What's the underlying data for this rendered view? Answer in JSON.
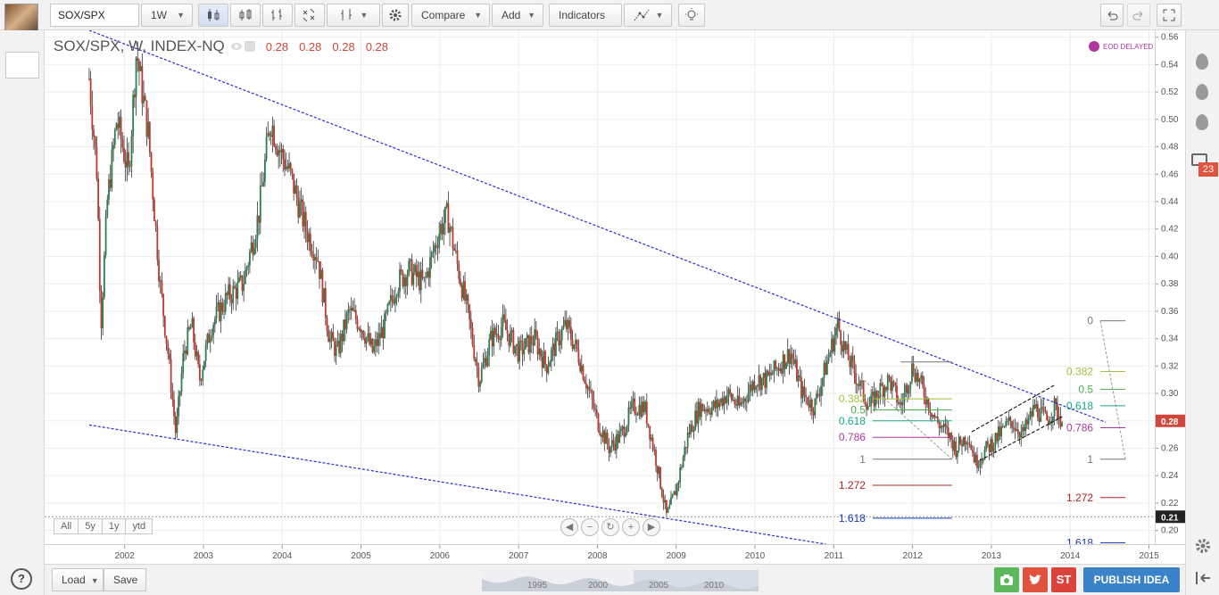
{
  "toolbar": {
    "symbol": "SOX/SPX",
    "interval": "1W",
    "compare": "Compare",
    "add": "Add",
    "indicators": "Indicators"
  },
  "legend": {
    "title": "SOX/SPX, W, INDEX-NQ",
    "open": "0.28",
    "high": "0.28",
    "low": "0.28",
    "close": "0.28"
  },
  "eod_label": "EOD DELAYED",
  "range_buttons": [
    "All",
    "5y",
    "1y",
    "ytd"
  ],
  "bottom": {
    "load": "Load",
    "save": "Save",
    "publish": "PUBLISH IDEA",
    "st": "ST",
    "minimap_years": [
      "1995",
      "2000",
      "2005",
      "2010"
    ]
  },
  "right_panel": {
    "badge": "23"
  },
  "help": "?",
  "colors": {
    "up": "#2e7d4f",
    "down": "#c0392b",
    "trendline": "#2a2ad8",
    "accent": "#3b83c9"
  },
  "chart_data": {
    "type": "candlestick",
    "yaxis": {
      "min": 0.19,
      "max": 0.565,
      "ticks": [
        0.2,
        0.22,
        0.24,
        0.26,
        0.28,
        0.3,
        0.32,
        0.34,
        0.36,
        0.38,
        0.4,
        0.42,
        0.44,
        0.46,
        0.48,
        0.5,
        0.52,
        0.54,
        0.56
      ]
    },
    "xaxis": {
      "ticks": [
        "2002",
        "2003",
        "2004",
        "2005",
        "2006",
        "2007",
        "2008",
        "2009",
        "2010",
        "2011",
        "2012",
        "2013",
        "2014",
        "2015"
      ]
    },
    "last_price": "0.28",
    "marker_price": "0.21",
    "price_path": [
      [
        2001.55,
        0.53
      ],
      [
        2001.65,
        0.46
      ],
      [
        2001.7,
        0.35
      ],
      [
        2001.78,
        0.44
      ],
      [
        2001.9,
        0.5
      ],
      [
        2002.05,
        0.46
      ],
      [
        2002.15,
        0.55
      ],
      [
        2002.3,
        0.49
      ],
      [
        2002.45,
        0.38
      ],
      [
        2002.55,
        0.33
      ],
      [
        2002.65,
        0.27
      ],
      [
        2002.75,
        0.33
      ],
      [
        2002.85,
        0.35
      ],
      [
        2002.95,
        0.31
      ],
      [
        2003.1,
        0.35
      ],
      [
        2003.3,
        0.37
      ],
      [
        2003.5,
        0.38
      ],
      [
        2003.7,
        0.43
      ],
      [
        2003.85,
        0.5
      ],
      [
        2003.95,
        0.48
      ],
      [
        2004.1,
        0.46
      ],
      [
        2004.3,
        0.42
      ],
      [
        2004.45,
        0.4
      ],
      [
        2004.6,
        0.34
      ],
      [
        2004.7,
        0.33
      ],
      [
        2004.85,
        0.36
      ],
      [
        2005.0,
        0.35
      ],
      [
        2005.15,
        0.33
      ],
      [
        2005.3,
        0.35
      ],
      [
        2005.45,
        0.38
      ],
      [
        2005.6,
        0.39
      ],
      [
        2005.8,
        0.38
      ],
      [
        2006.0,
        0.42
      ],
      [
        2006.1,
        0.43
      ],
      [
        2006.2,
        0.4
      ],
      [
        2006.35,
        0.36
      ],
      [
        2006.5,
        0.31
      ],
      [
        2006.65,
        0.34
      ],
      [
        2006.8,
        0.35
      ],
      [
        2007.0,
        0.33
      ],
      [
        2007.2,
        0.34
      ],
      [
        2007.35,
        0.32
      ],
      [
        2007.5,
        0.34
      ],
      [
        2007.6,
        0.35
      ],
      [
        2007.75,
        0.33
      ],
      [
        2007.9,
        0.3
      ],
      [
        2008.0,
        0.28
      ],
      [
        2008.15,
        0.26
      ],
      [
        2008.3,
        0.27
      ],
      [
        2008.45,
        0.29
      ],
      [
        2008.6,
        0.29
      ],
      [
        2008.75,
        0.25
      ],
      [
        2008.88,
        0.21
      ],
      [
        2009.0,
        0.23
      ],
      [
        2009.15,
        0.27
      ],
      [
        2009.3,
        0.29
      ],
      [
        2009.5,
        0.29
      ],
      [
        2009.65,
        0.3
      ],
      [
        2009.8,
        0.29
      ],
      [
        2010.0,
        0.31
      ],
      [
        2010.15,
        0.31
      ],
      [
        2010.3,
        0.32
      ],
      [
        2010.45,
        0.33
      ],
      [
        2010.6,
        0.3
      ],
      [
        2010.75,
        0.29
      ],
      [
        2010.9,
        0.32
      ],
      [
        2011.05,
        0.35
      ],
      [
        2011.15,
        0.33
      ],
      [
        2011.3,
        0.31
      ],
      [
        2011.45,
        0.29
      ],
      [
        2011.55,
        0.3
      ],
      [
        2011.7,
        0.31
      ],
      [
        2011.85,
        0.29
      ],
      [
        2012.0,
        0.32
      ],
      [
        2012.15,
        0.3
      ],
      [
        2012.3,
        0.28
      ],
      [
        2012.45,
        0.27
      ],
      [
        2012.55,
        0.26
      ],
      [
        2012.7,
        0.27
      ],
      [
        2012.8,
        0.25
      ],
      [
        2012.95,
        0.26
      ],
      [
        2013.1,
        0.27
      ],
      [
        2013.25,
        0.28
      ],
      [
        2013.4,
        0.27
      ],
      [
        2013.55,
        0.29
      ],
      [
        2013.7,
        0.28
      ],
      [
        2013.8,
        0.29
      ],
      [
        2013.9,
        0.28
      ]
    ],
    "trendlines": [
      {
        "from": [
          2001.55,
          0.565
        ],
        "to": [
          2014.45,
          0.279
        ]
      },
      {
        "from": [
          2001.55,
          0.277
        ],
        "to": [
          2010.9,
          0.19
        ]
      }
    ],
    "fib_left": {
      "x_range": [
        2010.95,
        2012.5
      ],
      "levels": [
        {
          "label": "0.382",
          "value": 0.296,
          "color": "#9ec13a"
        },
        {
          "label": "0.5",
          "value": 0.288,
          "color": "#4aae4a"
        },
        {
          "label": "0.618",
          "value": 0.28,
          "color": "#1aa88a"
        },
        {
          "label": "0.786",
          "value": 0.268,
          "color": "#b0359e"
        },
        {
          "label": "1",
          "value": 0.252,
          "color": "#777777"
        },
        {
          "label": "1.272",
          "value": 0.233,
          "color": "#b22222"
        },
        {
          "label": "1.618",
          "value": 0.209,
          "color": "#1a3ab0"
        }
      ]
    },
    "fib_right": {
      "x_range": [
        2013.85,
        2014.7
      ],
      "levels": [
        {
          "label": "0",
          "value": 0.353,
          "color": "#777777"
        },
        {
          "label": "0.382",
          "value": 0.316,
          "color": "#9ec13a"
        },
        {
          "label": "0.5",
          "value": 0.303,
          "color": "#4aae4a"
        },
        {
          "label": "0.618",
          "value": 0.291,
          "color": "#1aa88a"
        },
        {
          "label": "0.786",
          "value": 0.275,
          "color": "#b0359e"
        },
        {
          "label": "1",
          "value": 0.252,
          "color": "#777777"
        },
        {
          "label": "1.272",
          "value": 0.224,
          "color": "#b22222"
        },
        {
          "label": "1.618",
          "value": 0.191,
          "color": "#1a3ab0"
        }
      ]
    },
    "channel": {
      "upper": {
        "from": [
          2012.75,
          0.272
        ],
        "to": [
          2013.8,
          0.306
        ]
      },
      "lower": {
        "from": [
          2012.85,
          0.251
        ],
        "to": [
          2013.9,
          0.283
        ]
      }
    }
  }
}
